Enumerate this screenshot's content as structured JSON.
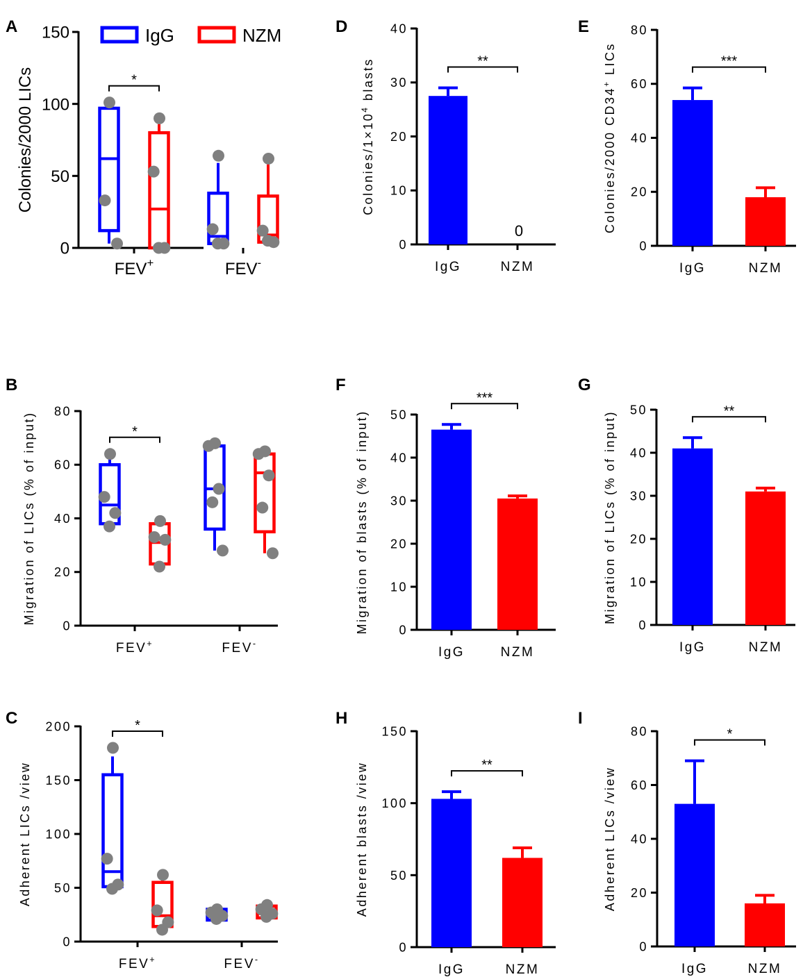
{
  "figure": {
    "legend": {
      "items": [
        {
          "name": "IgG",
          "color": "#0000ff"
        },
        {
          "name": "NZM",
          "color": "#ff0000"
        }
      ]
    },
    "marker_color": "#808080"
  },
  "chart_data": [
    {
      "id": "A",
      "panel_label": "A",
      "type": "box",
      "ylabel": "Colonies/2000 LICs",
      "ylim": [
        0,
        150
      ],
      "ticks": [
        0,
        50,
        100,
        150
      ],
      "groups": [
        {
          "base": "FEV",
          "sup": "+",
          "boxes": [
            {
              "series": "IgG",
              "min": 3,
              "q1": 12,
              "median": 62,
              "q3": 97,
              "max": 101,
              "points": [
                101,
                33,
                3
              ]
            },
            {
              "series": "NZM",
              "min": 0,
              "q1": 0,
              "median": 27,
              "q3": 80,
              "max": 86,
              "points": [
                90,
                53,
                0,
                0
              ]
            }
          ]
        },
        {
          "base": "FEV",
          "sup": "-",
          "boxes": [
            {
              "series": "IgG",
              "min": 2,
              "q1": 3,
              "median": 8,
              "q3": 38,
              "max": 59,
              "points": [
                64,
                13,
                3,
                3
              ]
            },
            {
              "series": "NZM",
              "min": 3,
              "q1": 4,
              "median": 9,
              "q3": 36,
              "max": 58,
              "points": [
                62,
                12,
                4,
                5
              ]
            }
          ]
        }
      ],
      "annotations": [
        {
          "text": "*",
          "group": 0
        }
      ]
    },
    {
      "id": "B",
      "panel_label": "B",
      "type": "box",
      "ylabel": "Migration of LICs (% of input)",
      "ylim": [
        0,
        80
      ],
      "ticks": [
        0,
        20,
        40,
        60,
        80
      ],
      "groups": [
        {
          "base": "FEV",
          "sup": "+",
          "boxes": [
            {
              "series": "IgG",
              "min": 37,
              "q1": 38,
              "median": 45,
              "q3": 60,
              "max": 63,
              "points": [
                64,
                48,
                42,
                37
              ]
            },
            {
              "series": "NZM",
              "min": 21,
              "q1": 23,
              "median": 31,
              "q3": 38,
              "max": 38,
              "points": [
                39,
                33,
                32,
                22
              ]
            }
          ]
        },
        {
          "base": "FEV",
          "sup": "-",
          "boxes": [
            {
              "series": "IgG",
              "min": 28,
              "q1": 36,
              "median": 51,
              "q3": 67,
              "max": 68,
              "points": [
                68,
                67,
                51,
                46,
                28
              ]
            },
            {
              "series": "NZM",
              "min": 27,
              "q1": 35,
              "median": 57,
              "q3": 64,
              "max": 65,
              "points": [
                65,
                64,
                56,
                44,
                27
              ]
            }
          ]
        }
      ],
      "annotations": [
        {
          "text": "*",
          "group": 0
        }
      ]
    },
    {
      "id": "C",
      "panel_label": "C",
      "type": "box",
      "ylabel": "Adherent LICs /view",
      "ylim": [
        0,
        200
      ],
      "ticks": [
        0,
        50,
        100,
        150,
        200
      ],
      "groups": [
        {
          "base": "FEV",
          "sup": "+",
          "boxes": [
            {
              "series": "IgG",
              "min": 49,
              "q1": 51,
              "median": 65,
              "q3": 155,
              "max": 172,
              "points": [
                180,
                77,
                53,
                49
              ]
            },
            {
              "series": "NZM",
              "min": 12,
              "q1": 14,
              "median": 24,
              "q3": 55,
              "max": 58,
              "points": [
                62,
                29,
                18,
                11
              ]
            }
          ]
        },
        {
          "base": "FEV",
          "sup": "-",
          "boxes": [
            {
              "series": "IgG",
              "min": 20,
              "q1": 20,
              "median": 27,
              "q3": 30,
              "max": 30,
              "points": [
                30,
                27,
                24,
                21
              ]
            },
            {
              "series": "NZM",
              "min": 22,
              "q1": 22,
              "median": 26,
              "q3": 33,
              "max": 33,
              "points": [
                34,
                30,
                26,
                23
              ]
            }
          ]
        }
      ],
      "annotations": [
        {
          "text": "*",
          "group": 0
        }
      ]
    },
    {
      "id": "D",
      "panel_label": "D",
      "type": "bar",
      "ylabel_pre": "Colonies/1×10",
      "ylabel_sup": "4",
      "ylabel_post": " blasts",
      "ylim": [
        0,
        40
      ],
      "ticks": [
        0,
        10,
        20,
        30,
        40
      ],
      "categories": [
        "IgG",
        "NZM"
      ],
      "values": [
        27.5,
        0
      ],
      "errors": [
        1.5,
        0
      ],
      "value_labels": [
        "",
        "0"
      ],
      "significance": "**"
    },
    {
      "id": "E",
      "panel_label": "E",
      "type": "bar",
      "ylabel_pre": "Colonies/2000 CD34",
      "ylabel_sup": "+",
      "ylabel_post": " LICs",
      "ylim": [
        0,
        80
      ],
      "ticks": [
        0,
        20,
        40,
        60,
        80
      ],
      "categories": [
        "IgG",
        "NZM"
      ],
      "values": [
        54,
        18
      ],
      "errors": [
        4.5,
        3.5
      ],
      "value_labels": [
        "",
        ""
      ],
      "significance": "***"
    },
    {
      "id": "F",
      "panel_label": "F",
      "type": "bar",
      "ylabel": "Migration of blasts (% of input)",
      "ylim": [
        0,
        50
      ],
      "ticks": [
        0,
        10,
        20,
        30,
        40,
        50
      ],
      "categories": [
        "IgG",
        "NZM"
      ],
      "values": [
        46.5,
        30.5
      ],
      "errors": [
        1.2,
        0.6
      ],
      "value_labels": [
        "",
        ""
      ],
      "significance": "***"
    },
    {
      "id": "G",
      "panel_label": "G",
      "type": "bar",
      "ylabel": "Migration of LICs (% of input)",
      "ylim": [
        0,
        50
      ],
      "ticks": [
        0,
        10,
        20,
        30,
        40,
        50
      ],
      "categories": [
        "IgG",
        "NZM"
      ],
      "values": [
        41,
        31
      ],
      "errors": [
        2.5,
        0.8
      ],
      "value_labels": [
        "",
        ""
      ],
      "significance": "**"
    },
    {
      "id": "H",
      "panel_label": "H",
      "type": "bar",
      "ylabel": "Adherent blasts /view",
      "ylim": [
        0,
        150
      ],
      "ticks": [
        0,
        50,
        100,
        150
      ],
      "categories": [
        "IgG",
        "NZM"
      ],
      "values": [
        103,
        62
      ],
      "errors": [
        5,
        7
      ],
      "value_labels": [
        "",
        ""
      ],
      "significance": "**"
    },
    {
      "id": "I",
      "panel_label": "I",
      "type": "bar",
      "ylabel": "Adherent LICs /view",
      "ylim": [
        0,
        80
      ],
      "ticks": [
        0,
        20,
        40,
        60,
        80
      ],
      "categories": [
        "IgG",
        "NZM"
      ],
      "values": [
        53,
        16
      ],
      "errors": [
        16,
        3
      ],
      "value_labels": [
        "",
        ""
      ],
      "significance": "*"
    }
  ]
}
